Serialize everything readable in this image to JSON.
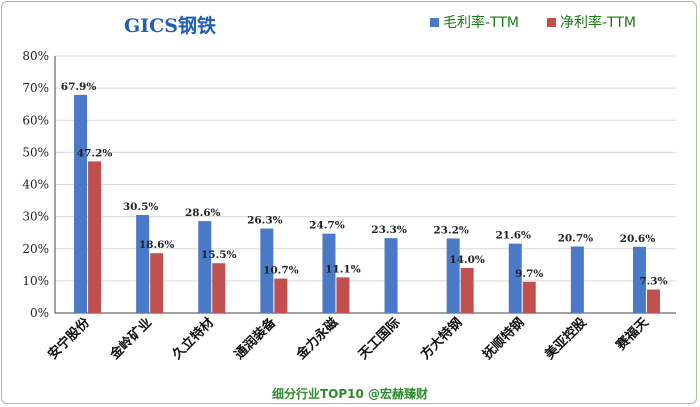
{
  "colors": {
    "title": "#1f5fb3",
    "gross": "#4a7ac7",
    "net": "#c0504d",
    "grid": "#d9d9d9",
    "axis": "#444444",
    "footer": "#2e8b2e",
    "legend_text": "#1a7a1a"
  },
  "chart_data": {
    "type": "bar",
    "title": "GICS钢铁",
    "xlabel": "",
    "ylabel": "",
    "ylim": [
      0,
      80
    ],
    "yticks": [
      0,
      10,
      20,
      30,
      40,
      50,
      60,
      70,
      80
    ],
    "ytick_suffix": "%",
    "grid": true,
    "legend_position": "top-right",
    "categories": [
      "安宁股份",
      "金岭矿业",
      "久立特材",
      "通润装备",
      "金力永磁",
      "天工国际",
      "方大特钢",
      "抚顺特钢",
      "美亚控股",
      "赛福天"
    ],
    "series": [
      {
        "name": "毛利率-TTM",
        "values": [
          67.9,
          30.5,
          28.6,
          26.3,
          24.7,
          23.3,
          23.2,
          21.6,
          20.7,
          20.6
        ],
        "labels": [
          "67.9%",
          "30.5%",
          "28.6%",
          "26.3%",
          "24.7%",
          "23.3%",
          "23.2%",
          "21.6%",
          "20.7%",
          "20.6%"
        ]
      },
      {
        "name": "净利率-TTM",
        "values": [
          47.2,
          18.6,
          15.5,
          10.7,
          11.1,
          null,
          14.0,
          9.7,
          null,
          7.3
        ],
        "labels": [
          "47.2%",
          "18.6%",
          "15.5%",
          "10.7%",
          "11.1%",
          "",
          "14.0%",
          "9.7%",
          "",
          "7.3%"
        ]
      }
    ],
    "footer": "细分行业TOP10 @宏赫臻财"
  }
}
